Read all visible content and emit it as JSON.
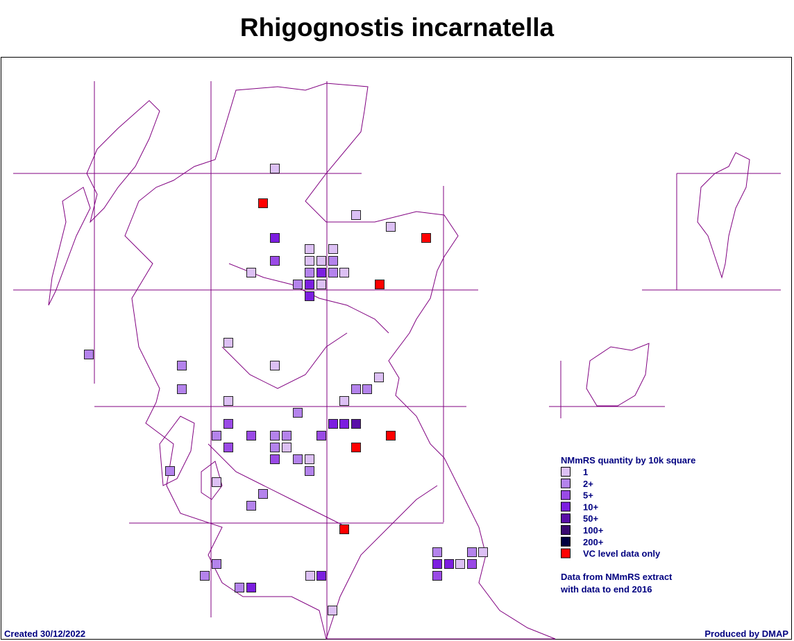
{
  "title": "Rhigognostis incarnatella",
  "legend": {
    "title": "NMmRS quantity by 10k square",
    "items": [
      {
        "label": "1",
        "color": "#dcc0f4"
      },
      {
        "label": "2+",
        "color": "#b483ec"
      },
      {
        "label": "5+",
        "color": "#9a4ae6"
      },
      {
        "label": "10+",
        "color": "#7c1ee0"
      },
      {
        "label": "50+",
        "color": "#5a0fa8"
      },
      {
        "label": "100+",
        "color": "#3a0a70"
      },
      {
        "label": "200+",
        "color": "#000040"
      },
      {
        "label": "VC level data only",
        "color": "#ff0000"
      }
    ]
  },
  "note": [
    "Data from NMmRS extract",
    "with data to end 2016"
  ],
  "footer": {
    "created": "Created 30/12/2022",
    "produced": "Produced by DMAP"
  }
}
